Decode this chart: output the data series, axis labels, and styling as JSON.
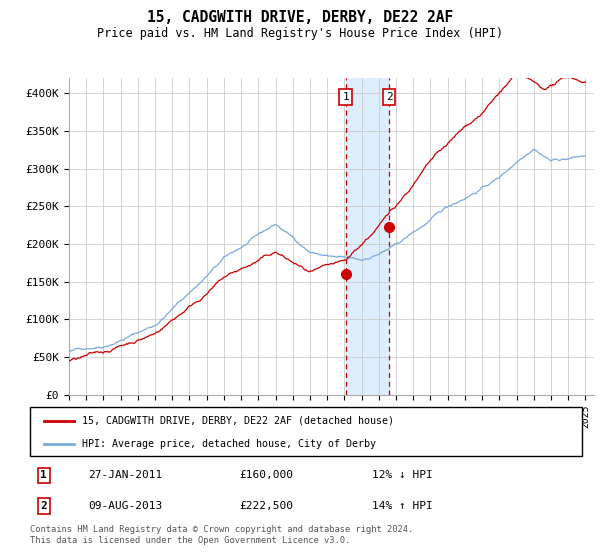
{
  "title": "15, CADGWITH DRIVE, DERBY, DE22 2AF",
  "subtitle": "Price paid vs. HM Land Registry's House Price Index (HPI)",
  "ylabel_ticks": [
    "£0",
    "£50K",
    "£100K",
    "£150K",
    "£200K",
    "£250K",
    "£300K",
    "£350K",
    "£400K"
  ],
  "ytick_values": [
    0,
    50000,
    100000,
    150000,
    200000,
    250000,
    300000,
    350000,
    400000
  ],
  "ylim": [
    0,
    420000
  ],
  "xlim_start": 1995,
  "xlim_end": 2025.5,
  "sale1_x": 2011.07,
  "sale1_y": 160000,
  "sale2_x": 2013.6,
  "sale2_y": 222500,
  "legend_line1": "15, CADGWITH DRIVE, DERBY, DE22 2AF (detached house)",
  "legend_line2": "HPI: Average price, detached house, City of Derby",
  "table_row1": [
    "1",
    "27-JAN-2011",
    "£160,000",
    "12% ↓ HPI"
  ],
  "table_row2": [
    "2",
    "09-AUG-2013",
    "£222,500",
    "14% ↑ HPI"
  ],
  "footer": "Contains HM Land Registry data © Crown copyright and database right 2024.\nThis data is licensed under the Open Government Licence v3.0.",
  "hpi_color": "#7aaadd",
  "price_color": "#cc0000",
  "shade_color": "#ddeeff",
  "background_color": "#ffffff",
  "grid_color": "#cccccc"
}
